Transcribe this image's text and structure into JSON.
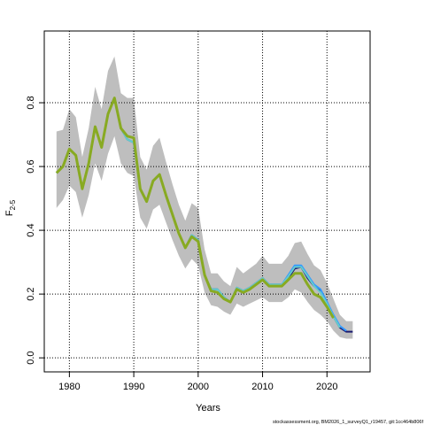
{
  "chart_data": {
    "type": "line",
    "xlabel": "Years",
    "ylabel": "F",
    "ylabel_sub": "2-5",
    "footer": "stockassessment.org, BM2026_1_surveyQ1_r19457, git:1cc464b806f",
    "x": [
      1978,
      1979,
      1980,
      1981,
      1982,
      1983,
      1984,
      1985,
      1986,
      1987,
      1988,
      1989,
      1990,
      1991,
      1992,
      1993,
      1994,
      1995,
      1996,
      1997,
      1998,
      1999,
      2000,
      2001,
      2002,
      2003,
      2004,
      2005,
      2006,
      2007,
      2008,
      2009,
      2010,
      2011,
      2012,
      2013,
      2014,
      2015,
      2016,
      2017,
      2018,
      2019,
      2020,
      2021,
      2022,
      2023,
      2024
    ],
    "xlim": [
      1976.1,
      2026.7
    ],
    "xticks": [
      1980,
      1990,
      2000,
      2010,
      2020
    ],
    "ylim": [
      -0.044,
      1.025
    ],
    "yticks": [
      {
        "value": 0,
        "label": "0.0"
      },
      0.2,
      0.4,
      0.6,
      0.8
    ],
    "grid": true,
    "band": {
      "color": "#bebebe",
      "upper": [
        0.71,
        0.715,
        0.78,
        0.755,
        0.63,
        0.72,
        0.85,
        0.78,
        0.9,
        0.945,
        0.83,
        0.815,
        0.815,
        0.63,
        0.59,
        0.665,
        0.69,
        0.615,
        0.545,
        0.48,
        0.43,
        0.485,
        0.47,
        0.34,
        0.265,
        0.265,
        0.24,
        0.225,
        0.285,
        0.265,
        0.28,
        0.295,
        0.32,
        0.295,
        0.295,
        0.295,
        0.32,
        0.36,
        0.365,
        0.325,
        0.29,
        0.275,
        0.235,
        0.185,
        0.135,
        0.115,
        0.115
      ],
      "lower": [
        0.47,
        0.495,
        0.54,
        0.52,
        0.44,
        0.51,
        0.61,
        0.555,
        0.64,
        0.695,
        0.61,
        0.58,
        0.57,
        0.44,
        0.405,
        0.465,
        0.48,
        0.425,
        0.37,
        0.32,
        0.28,
        0.31,
        0.29,
        0.205,
        0.165,
        0.16,
        0.145,
        0.135,
        0.17,
        0.16,
        0.17,
        0.18,
        0.19,
        0.175,
        0.175,
        0.175,
        0.19,
        0.215,
        0.205,
        0.175,
        0.15,
        0.135,
        0.115,
        0.085,
        0.065,
        0.06,
        0.06
      ]
    },
    "series": [
      {
        "color": "#1a1a6e",
        "width": 2,
        "values": [
          0.58,
          0.6,
          0.655,
          0.635,
          0.53,
          0.61,
          0.725,
          0.66,
          0.765,
          0.815,
          0.72,
          0.685,
          0.675,
          0.53,
          0.49,
          0.555,
          0.575,
          0.51,
          0.45,
          0.39,
          0.345,
          0.385,
          0.37,
          0.26,
          0.215,
          0.215,
          0.19,
          0.175,
          0.22,
          0.21,
          0.22,
          0.235,
          0.25,
          0.23,
          0.23,
          0.23,
          0.25,
          0.28,
          0.285,
          0.25,
          0.225,
          0.21,
          0.175,
          0.13,
          0.095,
          0.082,
          0.082
        ]
      },
      {
        "color": "#3399ff",
        "width": 2,
        "values": [
          0.58,
          0.6,
          0.655,
          0.635,
          0.53,
          0.61,
          0.725,
          0.66,
          0.765,
          0.815,
          0.72,
          0.685,
          0.675,
          0.53,
          0.49,
          0.555,
          0.575,
          0.51,
          0.45,
          0.39,
          0.345,
          0.385,
          0.37,
          0.26,
          0.215,
          0.215,
          0.19,
          0.175,
          0.22,
          0.21,
          0.22,
          0.235,
          0.25,
          0.23,
          0.23,
          0.23,
          0.26,
          0.29,
          0.29,
          0.26,
          0.23,
          0.215,
          0.175,
          0.135,
          0.1,
          0.085,
          null
        ]
      },
      {
        "color": "#66cccc",
        "width": 2,
        "values": [
          0.58,
          0.6,
          0.655,
          0.635,
          0.53,
          0.61,
          0.725,
          0.66,
          0.765,
          0.815,
          0.72,
          0.685,
          0.675,
          0.53,
          0.49,
          0.555,
          0.575,
          0.51,
          0.45,
          0.39,
          0.345,
          0.385,
          0.37,
          0.26,
          0.215,
          0.215,
          0.19,
          0.175,
          0.22,
          0.21,
          0.22,
          0.235,
          0.25,
          0.23,
          0.23,
          0.23,
          0.255,
          0.285,
          0.285,
          0.255,
          0.225,
          0.205,
          0.17,
          0.13,
          0.095,
          null,
          null
        ]
      },
      {
        "color": "#88aa22",
        "width": 3,
        "values": [
          0.58,
          0.6,
          0.655,
          0.635,
          0.53,
          0.61,
          0.725,
          0.66,
          0.765,
          0.815,
          0.72,
          0.695,
          0.69,
          0.53,
          0.49,
          0.555,
          0.575,
          0.51,
          0.45,
          0.39,
          0.345,
          0.38,
          0.365,
          0.26,
          0.21,
          0.205,
          0.185,
          0.175,
          0.215,
          0.205,
          0.215,
          0.23,
          0.245,
          0.225,
          0.225,
          0.225,
          0.245,
          0.265,
          0.265,
          0.23,
          0.2,
          0.19,
          0.16,
          0.125,
          null,
          null,
          null
        ]
      }
    ]
  }
}
